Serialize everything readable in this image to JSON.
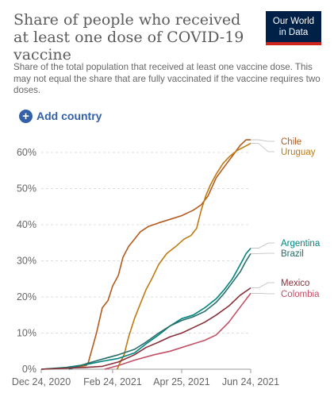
{
  "header": {
    "title": "Share of people who received at least one dose of COVID-19 vaccine",
    "subtitle": "Share of the total population that received at least one vaccine dose. This may not equal the share that are fully vaccinated if the vaccine requires two doses."
  },
  "logo": {
    "line1": "Our World",
    "line2": "in Data",
    "bg_color": "#002147",
    "accent_color": "#ce261e"
  },
  "controls": {
    "add_country_label": "Add country",
    "icon": "plus-circle-icon"
  },
  "chart_data": {
    "type": "line",
    "title": "Share of people who received at least one dose of COVID-19 vaccine",
    "xlabel": "",
    "ylabel": "",
    "ylim": [
      0,
      65
    ],
    "xlim": [
      "2020-12-24",
      "2021-06-24"
    ],
    "grid": "horizontal dashed",
    "y_ticks": [
      0,
      10,
      20,
      30,
      40,
      50,
      60
    ],
    "y_tick_labels": [
      "0%",
      "10%",
      "20%",
      "30%",
      "40%",
      "50%",
      "60%"
    ],
    "x_ticks": [
      "2020-12-24",
      "2021-02-24",
      "2021-04-25",
      "2021-06-24"
    ],
    "x_tick_labels": [
      "Dec 24, 2020",
      "Feb 24, 2021",
      "Apr 25, 2021",
      "Jun 24, 2021"
    ],
    "legend_placement": "right (end-of-line labels)",
    "series": [
      {
        "name": "Chile",
        "color": "#b35b1e",
        "points": [
          [
            "2020-12-24",
            0
          ],
          [
            "2021-01-15",
            0.3
          ],
          [
            "2021-02-01",
            1.0
          ],
          [
            "2021-02-03",
            2
          ],
          [
            "2021-02-10",
            10
          ],
          [
            "2021-02-15",
            17
          ],
          [
            "2021-02-20",
            19
          ],
          [
            "2021-02-24",
            23
          ],
          [
            "2021-03-01",
            26
          ],
          [
            "2021-03-05",
            31
          ],
          [
            "2021-03-10",
            34
          ],
          [
            "2021-03-15",
            36
          ],
          [
            "2021-03-20",
            38
          ],
          [
            "2021-03-27",
            39.5
          ],
          [
            "2021-04-05",
            40.5
          ],
          [
            "2021-04-15",
            41.5
          ],
          [
            "2021-04-25",
            42.5
          ],
          [
            "2021-05-05",
            44
          ],
          [
            "2021-05-12",
            45.5
          ],
          [
            "2021-05-18",
            48
          ],
          [
            "2021-05-25",
            53
          ],
          [
            "2021-06-01",
            56
          ],
          [
            "2021-06-08",
            59
          ],
          [
            "2021-06-15",
            62
          ],
          [
            "2021-06-20",
            63.5
          ],
          [
            "2021-06-24",
            63.5
          ]
        ]
      },
      {
        "name": "Uruguay",
        "color": "#be7b11",
        "points": [
          [
            "2021-02-28",
            0
          ],
          [
            "2021-03-02",
            1.5
          ],
          [
            "2021-03-06",
            4
          ],
          [
            "2021-03-10",
            9
          ],
          [
            "2021-03-15",
            14
          ],
          [
            "2021-03-20",
            18
          ],
          [
            "2021-03-25",
            22
          ],
          [
            "2021-03-30",
            25
          ],
          [
            "2021-04-05",
            29
          ],
          [
            "2021-04-12",
            32
          ],
          [
            "2021-04-20",
            34
          ],
          [
            "2021-04-27",
            36
          ],
          [
            "2021-05-03",
            37
          ],
          [
            "2021-05-08",
            39
          ],
          [
            "2021-05-12",
            44
          ],
          [
            "2021-05-16",
            48
          ],
          [
            "2021-05-20",
            51
          ],
          [
            "2021-05-25",
            54
          ],
          [
            "2021-05-31",
            57
          ],
          [
            "2021-06-06",
            59
          ],
          [
            "2021-06-12",
            60.5
          ],
          [
            "2021-06-18",
            61.5
          ],
          [
            "2021-06-24",
            62.5
          ]
        ]
      },
      {
        "name": "Argentina",
        "color": "#00847e",
        "points": [
          [
            "2020-12-24",
            0
          ],
          [
            "2021-01-15",
            0.5
          ],
          [
            "2021-02-01",
            1.3
          ],
          [
            "2021-02-15",
            2.2
          ],
          [
            "2021-03-01",
            3.0
          ],
          [
            "2021-03-15",
            4.5
          ],
          [
            "2021-03-25",
            7
          ],
          [
            "2021-04-05",
            9.5
          ],
          [
            "2021-04-15",
            12
          ],
          [
            "2021-04-25",
            14
          ],
          [
            "2021-05-05",
            15
          ],
          [
            "2021-05-15",
            17
          ],
          [
            "2021-05-25",
            19.5
          ],
          [
            "2021-06-01",
            22
          ],
          [
            "2021-06-08",
            25
          ],
          [
            "2021-06-15",
            29
          ],
          [
            "2021-06-20",
            32
          ],
          [
            "2021-06-24",
            33.5
          ]
        ]
      },
      {
        "name": "Brazil",
        "color": "#286e69",
        "points": [
          [
            "2021-01-17",
            0
          ],
          [
            "2021-02-01",
            1.5
          ],
          [
            "2021-02-15",
            2.8
          ],
          [
            "2021-03-01",
            4
          ],
          [
            "2021-03-15",
            5.5
          ],
          [
            "2021-03-25",
            7.5
          ],
          [
            "2021-04-05",
            10
          ],
          [
            "2021-04-15",
            12
          ],
          [
            "2021-04-25",
            13.5
          ],
          [
            "2021-05-05",
            14.5
          ],
          [
            "2021-05-15",
            16
          ],
          [
            "2021-05-25",
            18.5
          ],
          [
            "2021-06-01",
            21
          ],
          [
            "2021-06-08",
            24
          ],
          [
            "2021-06-15",
            27
          ],
          [
            "2021-06-20",
            30
          ],
          [
            "2021-06-24",
            32
          ]
        ]
      },
      {
        "name": "Mexico",
        "color": "#883039",
        "points": [
          [
            "2020-12-24",
            0
          ],
          [
            "2021-01-15",
            0.3
          ],
          [
            "2021-02-01",
            0.5
          ],
          [
            "2021-02-15",
            0.8
          ],
          [
            "2021-03-01",
            2
          ],
          [
            "2021-03-15",
            4
          ],
          [
            "2021-03-25",
            6
          ],
          [
            "2021-04-05",
            7.5
          ],
          [
            "2021-04-15",
            9
          ],
          [
            "2021-04-25",
            10
          ],
          [
            "2021-05-05",
            11.5
          ],
          [
            "2021-05-15",
            13
          ],
          [
            "2021-05-25",
            15
          ],
          [
            "2021-06-05",
            17.5
          ],
          [
            "2021-06-15",
            20.5
          ],
          [
            "2021-06-24",
            22.5
          ]
        ]
      },
      {
        "name": "Colombia",
        "color": "#c15065",
        "points": [
          [
            "2021-02-17",
            0
          ],
          [
            "2021-03-01",
            1
          ],
          [
            "2021-03-15",
            2.5
          ],
          [
            "2021-04-01",
            4
          ],
          [
            "2021-04-15",
            5
          ],
          [
            "2021-04-25",
            6
          ],
          [
            "2021-05-05",
            7
          ],
          [
            "2021-05-15",
            8
          ],
          [
            "2021-05-25",
            9.5
          ],
          [
            "2021-06-05",
            13
          ],
          [
            "2021-06-12",
            16
          ],
          [
            "2021-06-18",
            18.5
          ],
          [
            "2021-06-24",
            21
          ]
        ]
      }
    ],
    "legend_labels": [
      "Chile",
      "Uruguay",
      "Argentina",
      "Brazil",
      "Mexico",
      "Colombia"
    ]
  }
}
